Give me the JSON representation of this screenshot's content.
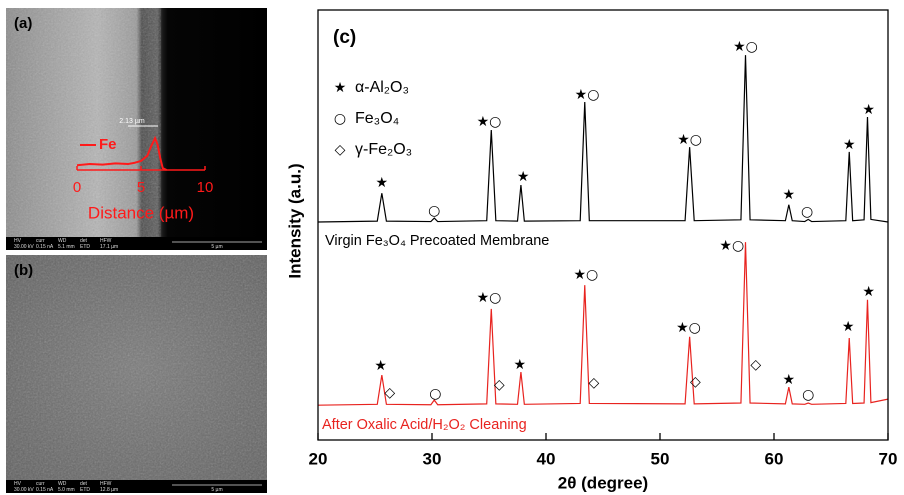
{
  "chart_data": [
    {
      "type": "line",
      "panel_label": "(c)",
      "xlabel": "2θ (degree)",
      "ylabel": "Intensity (a.u.)",
      "xlim": [
        20,
        70
      ],
      "ylim": [
        0,
        100
      ],
      "xticks": [
        20,
        30,
        40,
        50,
        60,
        70
      ],
      "box": true,
      "x": [
        20,
        25.2,
        25.6,
        26.0,
        29.9,
        30.2,
        30.5,
        34.8,
        35.2,
        35.6,
        37.5,
        37.8,
        38.1,
        43.0,
        43.4,
        43.8,
        52.2,
        52.6,
        53.0,
        57.1,
        57.5,
        57.9,
        61.0,
        61.3,
        61.6,
        62.7,
        63.0,
        63.3,
        66.3,
        66.6,
        66.9,
        67.9,
        68.2,
        68.5,
        70
      ],
      "series": [
        {
          "name": "Virgin Fe₃O₄ Precoated Membrane",
          "color": "#000000",
          "values": [
            50.7,
            50.9,
            57.4,
            50.9,
            50.8,
            51.6,
            50.8,
            51,
            72.1,
            51,
            50.9,
            59.3,
            50.9,
            51,
            78.6,
            51,
            51,
            68.1,
            51,
            51.2,
            89.5,
            51.2,
            51,
            54.7,
            51,
            50.8,
            51.3,
            50.8,
            51,
            67,
            51,
            51.2,
            75.1,
            51.3,
            50.7
          ]
        },
        {
          "name": "After Oxalic Acid/H₂O₂ Cleaning",
          "color": "#e8231f",
          "values": [
            8.1,
            8.3,
            15.1,
            8.3,
            8.2,
            9.3,
            8.2,
            8.4,
            30.5,
            8.4,
            8.3,
            15.8,
            8.3,
            8.5,
            36,
            8.5,
            8.4,
            24,
            8.4,
            8.6,
            46,
            8.6,
            8.4,
            12.3,
            8.4,
            8.3,
            8.6,
            8.3,
            8.5,
            23.7,
            8.5,
            8.6,
            32.6,
            8.7,
            9.5
          ]
        }
      ],
      "legend": [
        {
          "symbol": "★",
          "label": "α-Al₂O₃"
        },
        {
          "symbol": "○",
          "label": "Fe₃O₄"
        },
        {
          "symbol": "◇",
          "label": "γ-Fe₂O₃"
        }
      ],
      "peak_markers": [
        {
          "x": 25.6,
          "y": 59.8,
          "text": "★"
        },
        {
          "x": 30.2,
          "y": 53.3,
          "text": "○"
        },
        {
          "x": 35.0,
          "y": 74,
          "text": "★○"
        },
        {
          "x": 38.0,
          "y": 61.2,
          "text": "★"
        },
        {
          "x": 43.6,
          "y": 80.2,
          "text": "★○"
        },
        {
          "x": 52.6,
          "y": 69.8,
          "text": "★○"
        },
        {
          "x": 57.5,
          "y": 91.4,
          "text": "★○"
        },
        {
          "x": 61.3,
          "y": 57,
          "text": "★"
        },
        {
          "x": 62.9,
          "y": 53,
          "text": "○"
        },
        {
          "x": 66.6,
          "y": 68.6,
          "text": "★"
        },
        {
          "x": 68.3,
          "y": 76.7,
          "text": "★"
        },
        {
          "x": 25.5,
          "y": 17.2,
          "text": "★"
        },
        {
          "x": 26.3,
          "y": 10.9,
          "text": "◇"
        },
        {
          "x": 30.3,
          "y": 10.7,
          "text": "○"
        },
        {
          "x": 35.0,
          "y": 33,
          "text": "★○"
        },
        {
          "x": 35.9,
          "y": 12.8,
          "text": "◇"
        },
        {
          "x": 37.7,
          "y": 17.4,
          "text": "★"
        },
        {
          "x": 43.5,
          "y": 38.4,
          "text": "★○"
        },
        {
          "x": 44.2,
          "y": 13.3,
          "text": "◇"
        },
        {
          "x": 52.5,
          "y": 26,
          "text": "★○"
        },
        {
          "x": 53.1,
          "y": 13.5,
          "text": "◇"
        },
        {
          "x": 56.3,
          "y": 45.1,
          "text": "★○"
        },
        {
          "x": 58.4,
          "y": 17.4,
          "text": "◇"
        },
        {
          "x": 61.3,
          "y": 14,
          "text": "★"
        },
        {
          "x": 63.0,
          "y": 10.5,
          "text": "○"
        },
        {
          "x": 66.5,
          "y": 26.3,
          "text": "★"
        },
        {
          "x": 68.3,
          "y": 34.4,
          "text": "★"
        }
      ]
    },
    {
      "type": "line",
      "xlabel": "Distance (µm)",
      "xlim": [
        0,
        10
      ],
      "ylim": [
        0,
        10
      ],
      "xticks": [
        0,
        5,
        10
      ],
      "box": false,
      "annotation": "2.13 µm",
      "x": [
        0,
        1,
        2,
        3,
        4,
        4.5,
        5,
        5.5,
        5.8,
        6.1,
        6.3,
        6.5,
        6.7,
        7
      ],
      "series": [
        {
          "name": "Fe",
          "color": "#ff1a1a",
          "values": [
            0.8,
            1,
            0.9,
            1.1,
            1,
            1.2,
            1.5,
            2.4,
            4,
            5.3,
            4.2,
            2,
            0.3,
            0
          ]
        }
      ]
    }
  ],
  "panels": [
    {
      "label": "(a)",
      "info_head": [
        "HV",
        "curr",
        "WD",
        "det",
        "HFW"
      ],
      "info_values": [
        "30.00 kV",
        "0.15 nA",
        "5.1 mm",
        "ETD",
        "17.1 µm"
      ],
      "scale_bar": "5 µm"
    },
    {
      "label": "(b)",
      "info_head": [
        "HV",
        "curr",
        "WD",
        "det",
        "HFW"
      ],
      "info_values": [
        "30.00 kV",
        "0.15 nA",
        "5.0 mm",
        "ETD",
        "12.8 µm"
      ],
      "scale_bar": "5 µm"
    }
  ]
}
